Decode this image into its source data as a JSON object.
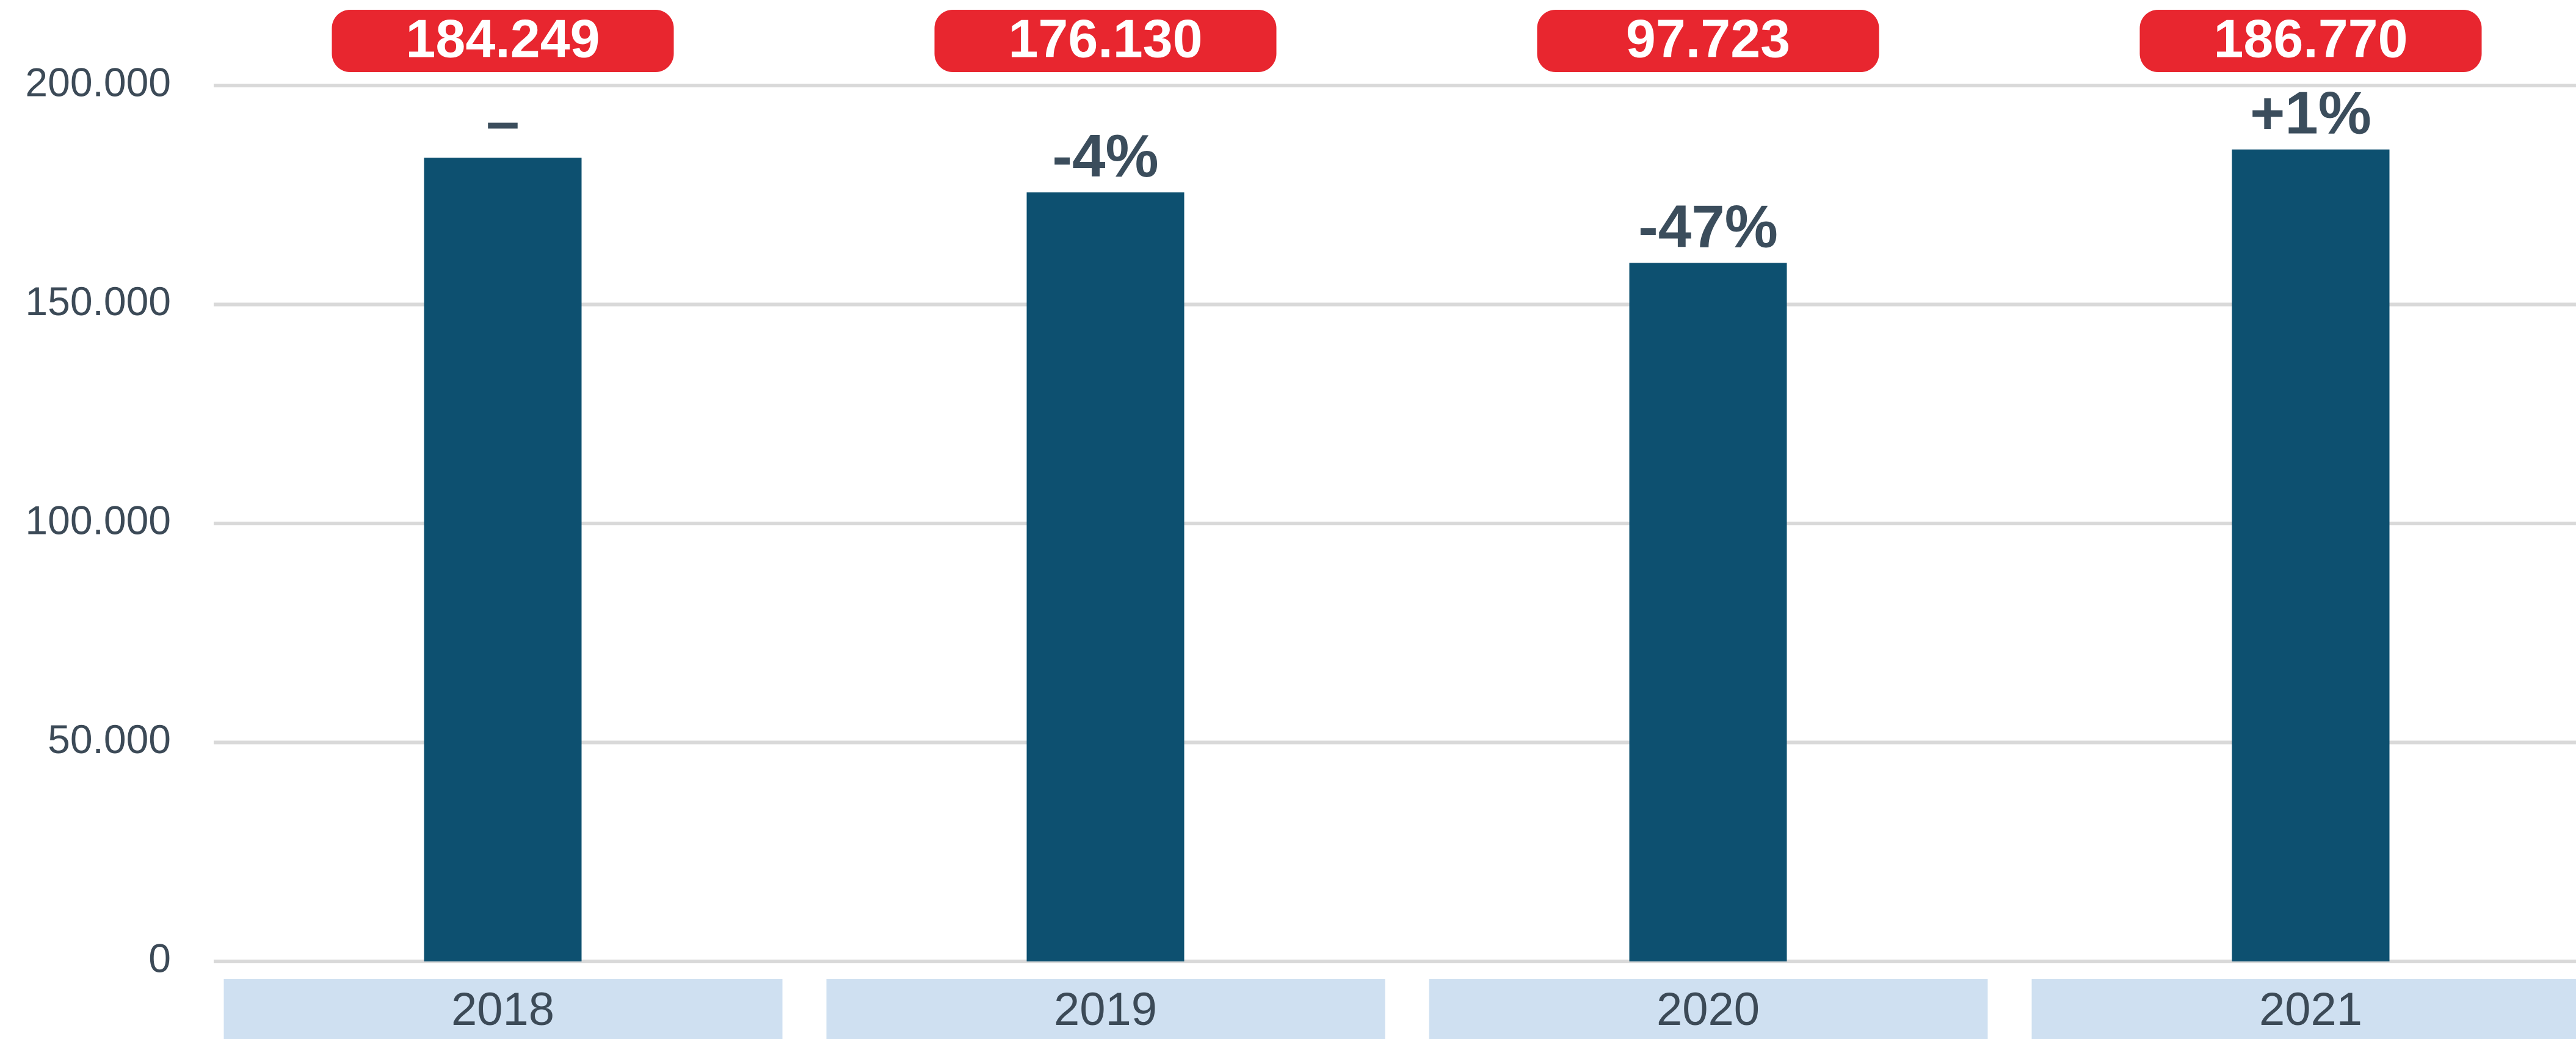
{
  "chart_data": {
    "type": "bar",
    "categories": [
      "2018",
      "2019",
      "2020",
      "2021"
    ],
    "values": [
      183500,
      175600,
      159500,
      185400
    ],
    "color": "#0d5070",
    "totals": [
      "184.249",
      "176.130",
      "97.723",
      "186.770"
    ],
    "total_color": "#e8262f",
    "changes": [
      "–",
      "-4%",
      "-47%",
      "+1%"
    ],
    "category_band_color": "#cfe0f1",
    "ylim": [
      0,
      200000
    ],
    "yticks": [
      0,
      {
        "value": 50000,
        "label": "50.000"
      },
      {
        "value": 100000,
        "label": "100.000"
      },
      {
        "value": 150000,
        "label": "150.000"
      },
      {
        "value": 200000,
        "label": "200.000"
      }
    ],
    "grid": true
  }
}
